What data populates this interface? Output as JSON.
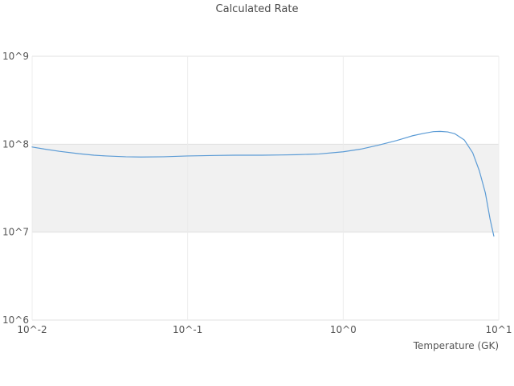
{
  "chart_data": {
    "type": "line",
    "title": "Calculated Rate",
    "xlabel": "Temperature (GK)",
    "ylabel": "",
    "x_scale": "log",
    "y_scale": "log",
    "xlim": [
      0.01,
      10
    ],
    "ylim": [
      1000000,
      1000000000
    ],
    "grid": true,
    "legend": "none",
    "x_ticks": [
      {
        "value": 0.01,
        "label": "10^-2"
      },
      {
        "value": 0.1,
        "label": "10^-1"
      },
      {
        "value": 1,
        "label": "10^0"
      },
      {
        "value": 10,
        "label": "10^1"
      }
    ],
    "y_ticks": [
      {
        "value": 1000000,
        "label": "10^6"
      },
      {
        "value": 10000000,
        "label": "10^7"
      },
      {
        "value": 100000000,
        "label": "10^8"
      },
      {
        "value": 1000000000,
        "label": "10^9"
      }
    ],
    "shaded_band": {
      "y_min": 10000000,
      "y_max": 100000000,
      "color": "#f1f1f1"
    },
    "colors": {
      "line": "#5b9bd5",
      "gridline_h": "#e0e0e0",
      "gridline_v": "#ececec",
      "tick_text": "#555555",
      "title_text": "#4a4a4a"
    },
    "series": [
      {
        "name": "calculated-rate",
        "x": [
          0.01,
          0.012,
          0.015,
          0.02,
          0.025,
          0.03,
          0.04,
          0.05,
          0.07,
          0.1,
          0.15,
          0.2,
          0.3,
          0.4,
          0.5,
          0.7,
          1.0,
          1.3,
          1.7,
          2.2,
          2.8,
          3.3,
          3.8,
          4.2,
          4.7,
          5.2,
          6.0,
          6.8,
          7.5,
          8.2,
          8.8,
          9.3
        ],
        "y": [
          93000000,
          88000000,
          83000000,
          78000000,
          75000000,
          73500000,
          72000000,
          71500000,
          72000000,
          73500000,
          74500000,
          75000000,
          75000000,
          75500000,
          76000000,
          77500000,
          82000000,
          88000000,
          98000000,
          110000000,
          125000000,
          133000000,
          139000000,
          140000000,
          138000000,
          132000000,
          112000000,
          80000000,
          50000000,
          28000000,
          14000000,
          9000000
        ]
      }
    ]
  }
}
